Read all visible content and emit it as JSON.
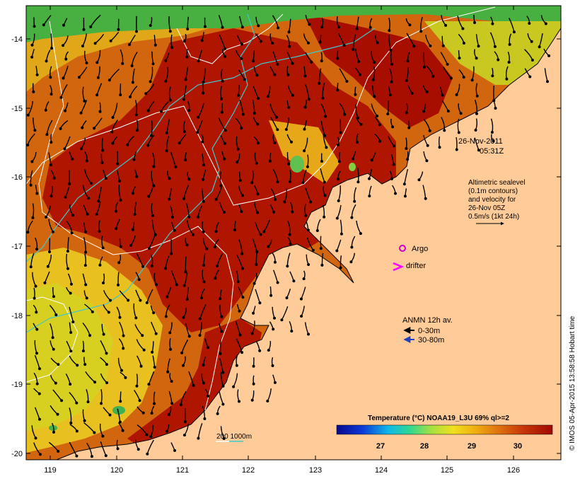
{
  "map": {
    "lon_ticks": [
      "119",
      "120",
      "121",
      "122",
      "123",
      "124",
      "125",
      "126"
    ],
    "lat_ticks": [
      "-14",
      "-15",
      "-16",
      "-17",
      "-18",
      "-19",
      "-20"
    ],
    "land_color": "#ffcc99",
    "sea_warm_color": "#b01500",
    "sea_cool_color": "#e0d020"
  },
  "timestamp": {
    "date": "26-Nov-2011",
    "time": "05:31Z"
  },
  "altimetry_note": {
    "line1": "Altimetric sealevel",
    "line2": "(0.1m contours)",
    "line3": "and velocity for",
    "line4": "26-Nov 05Z",
    "line5": "0.5m/s (1kt 24h)"
  },
  "markers": {
    "argo_label": "Argo",
    "drifter_label": "drifter",
    "argo_color": "#cc00cc",
    "drifter_color": "#ff00ff"
  },
  "anmn": {
    "title": "ANMN 12h av.",
    "shallow_label": "0-30m",
    "deep_label": "30-80m",
    "shallow_color": "#000000",
    "deep_color": "#1f3fbf"
  },
  "isobath_legend": {
    "label": "200  1000m"
  },
  "colorbar": {
    "title": "Temperature (°C) NOAA19_L3U 69% ql>=2",
    "ticks": [
      "27",
      "28",
      "29",
      "30"
    ]
  },
  "credit": "© IMOS 05-Apr-2015 13:58:58 Hobart time"
}
